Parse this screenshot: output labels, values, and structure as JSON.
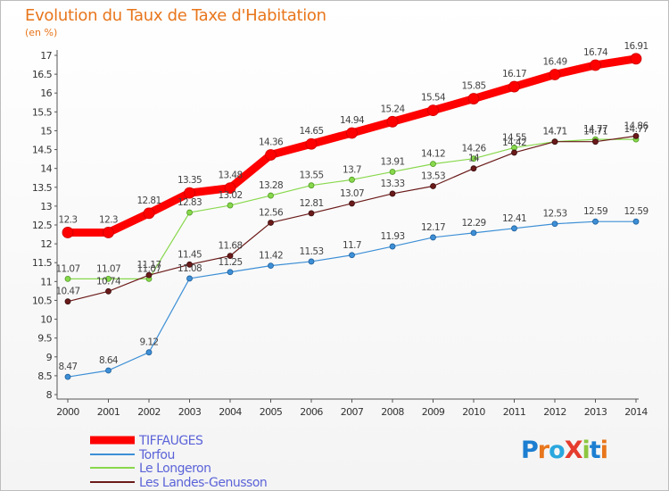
{
  "title": "Evolution du Taux de Taxe d'Habitation",
  "unit_label": "(en %)",
  "logo": "ProXiti",
  "chart_data": {
    "type": "line",
    "title": "Evolution du Taux de Taxe d'Habitation",
    "ylabel": "(en %)",
    "xlabel": "",
    "x": [
      "2000",
      "2001",
      "2002",
      "2003",
      "2004",
      "2005",
      "2006",
      "2007",
      "2008",
      "2009",
      "2010",
      "2011",
      "2012",
      "2013",
      "2014"
    ],
    "ylim": [
      8,
      17
    ],
    "yticks": [
      "8",
      "8.5",
      "9",
      "9.5",
      "10",
      "10.5",
      "11",
      "11.5",
      "12",
      "12.5",
      "13",
      "13.5",
      "14",
      "14.5",
      "15",
      "15.5",
      "16",
      "16.5",
      "17"
    ],
    "grid": false,
    "legend_position": "bottom-left",
    "series": [
      {
        "name": "TIFFAUGES",
        "color": "#ff0000",
        "values": [
          12.3,
          12.3,
          12.81,
          13.35,
          13.48,
          14.36,
          14.65,
          14.94,
          15.24,
          15.54,
          15.85,
          16.17,
          16.49,
          16.74,
          16.91
        ]
      },
      {
        "name": "Torfou",
        "color": "#3d8fd6",
        "values": [
          8.47,
          8.64,
          9.12,
          11.08,
          11.25,
          11.42,
          11.53,
          11.7,
          11.93,
          12.17,
          12.29,
          12.41,
          12.53,
          12.59,
          12.59
        ]
      },
      {
        "name": "Le Longeron",
        "color": "#88d84c",
        "values": [
          11.07,
          11.07,
          11.07,
          12.83,
          13.02,
          13.28,
          13.55,
          13.7,
          13.91,
          14.12,
          14.26,
          14.55,
          14.71,
          14.77,
          14.77
        ]
      },
      {
        "name": "Les Landes-Genusson",
        "color": "#6b1a1a",
        "values": [
          10.47,
          10.74,
          11.17,
          11.45,
          11.68,
          12.56,
          12.81,
          13.07,
          13.33,
          13.53,
          14,
          14.42,
          14.71,
          14.71,
          14.86
        ]
      }
    ],
    "labels": [
      [
        "12.3",
        "12.3",
        "12.81",
        "13.35",
        "13.48",
        "14.36",
        "14.65",
        "14.94",
        "15.24",
        "15.54",
        "15.85",
        "16.17",
        "16.49",
        "16.74",
        "16.91"
      ],
      [
        "8.47",
        "8.64",
        "9.12",
        "11.08",
        "11.25",
        "11.42",
        "11.53",
        "11.7",
        "11.93",
        "12.17",
        "12.29",
        "12.41",
        "12.53",
        "12.59",
        "12.59"
      ],
      [
        "11.07",
        "11.07",
        "11.07",
        "12.83",
        "13.02",
        "13.28",
        "13.55",
        "13.7",
        "13.91",
        "14.12",
        "14.26",
        "14.55",
        "14.71",
        "14.77",
        "14.77"
      ],
      [
        "10.47",
        "10.74",
        "11.17",
        "11.45",
        "11.68",
        "12.56",
        "12.81",
        "13.07",
        "13.33",
        "13.53",
        "14",
        "14.42",
        "14.71",
        "14.71",
        "14.86"
      ]
    ]
  }
}
